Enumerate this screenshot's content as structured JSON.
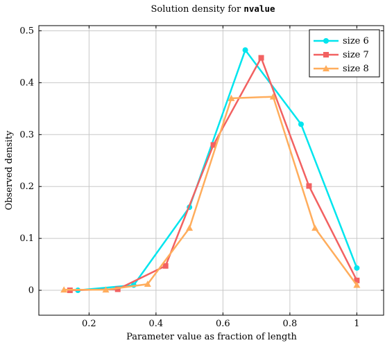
{
  "chart_data": {
    "type": "line",
    "title": "Solution density for",
    "title_code": "nvalue",
    "xlabel": "Parameter value as fraction of length",
    "ylabel": "Observed density",
    "xlim": [
      0.05,
      1.08
    ],
    "ylim": [
      -0.048,
      0.51
    ],
    "xticks": [
      0.2,
      0.4,
      0.6,
      0.8,
      1
    ],
    "xtick_labels": [
      "0.2",
      "0.4",
      "0.6",
      "0.8",
      "1"
    ],
    "yticks": [
      0,
      0.1,
      0.2,
      0.3,
      0.4,
      0.5
    ],
    "ytick_labels": [
      "0",
      "0.1",
      "0.2",
      "0.3",
      "0.4",
      "0.5"
    ],
    "grid": true,
    "legend_position": "top-right",
    "series": [
      {
        "name": "size 6",
        "color": "#00e5ee",
        "marker": "circle",
        "x": [
          0.1667,
          0.3333,
          0.5,
          0.6667,
          0.8333,
          1.0
        ],
        "y": [
          0.0,
          0.01,
          0.16,
          0.463,
          0.32,
          0.043
        ]
      },
      {
        "name": "size 7",
        "color": "#f26161",
        "marker": "square",
        "x": [
          0.1429,
          0.2857,
          0.4286,
          0.5714,
          0.7143,
          0.8571,
          1.0
        ],
        "y": [
          0.0,
          0.002,
          0.047,
          0.28,
          0.448,
          0.201,
          0.019
        ]
      },
      {
        "name": "size 8",
        "color": "#ffad5c",
        "marker": "triangle",
        "x": [
          0.125,
          0.25,
          0.375,
          0.5,
          0.625,
          0.75,
          0.875,
          1.0
        ],
        "y": [
          0.001,
          0.001,
          0.012,
          0.12,
          0.37,
          0.373,
          0.12,
          0.01
        ]
      }
    ]
  }
}
